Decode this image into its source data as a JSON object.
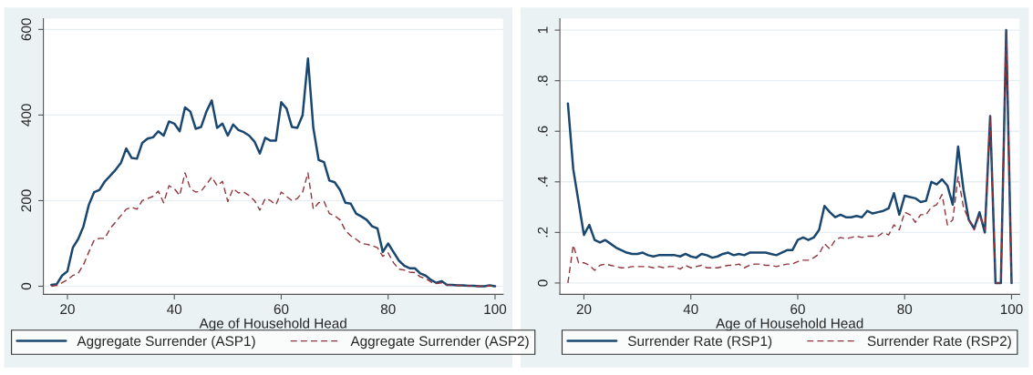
{
  "chart_data": [
    {
      "type": "line",
      "xlabel": "Age of Household Head",
      "xlim": [
        15.5,
        101.5
      ],
      "xticks": [
        20,
        40,
        60,
        80,
        100
      ],
      "ylim": [
        -19,
        625
      ],
      "yticks": [
        0,
        200,
        400,
        600
      ],
      "grid": "y",
      "legend": "bottom",
      "x": [
        17,
        18,
        19,
        20,
        21,
        22,
        23,
        24,
        25,
        26,
        27,
        28,
        29,
        30,
        31,
        32,
        33,
        34,
        35,
        36,
        37,
        38,
        39,
        40,
        41,
        42,
        43,
        44,
        45,
        46,
        47,
        48,
        49,
        50,
        51,
        52,
        53,
        54,
        55,
        56,
        57,
        58,
        59,
        60,
        61,
        62,
        63,
        64,
        65,
        66,
        67,
        68,
        69,
        70,
        71,
        72,
        73,
        74,
        75,
        76,
        77,
        78,
        79,
        80,
        81,
        82,
        83,
        84,
        85,
        86,
        87,
        88,
        89,
        90,
        91,
        92,
        93,
        94,
        95,
        96,
        97,
        98,
        99,
        100
      ],
      "series": [
        {
          "name": "Aggregate Surrender (ASP1)",
          "color": "#1a476f",
          "line_style": "solid",
          "values": [
            3,
            5,
            25,
            35,
            90,
            110,
            140,
            190,
            220,
            225,
            245,
            258,
            272,
            288,
            322,
            300,
            298,
            335,
            345,
            348,
            362,
            352,
            385,
            380,
            362,
            418,
            408,
            368,
            372,
            408,
            434,
            370,
            380,
            352,
            378,
            365,
            360,
            352,
            338,
            310,
            347,
            340,
            340,
            430,
            415,
            372,
            370,
            400,
            532,
            370,
            295,
            290,
            247,
            243,
            225,
            195,
            193,
            170,
            163,
            155,
            140,
            135,
            80,
            100,
            80,
            60,
            48,
            42,
            42,
            30,
            25,
            15,
            8,
            12,
            3,
            3,
            2,
            2,
            1,
            1,
            0,
            0,
            2,
            0
          ]
        },
        {
          "name": "Aggregate Surrender (ASP2)",
          "color": "#90353b",
          "line_style": "dashed",
          "values": [
            0,
            2,
            8,
            15,
            25,
            30,
            50,
            80,
            108,
            112,
            112,
            135,
            150,
            165,
            180,
            185,
            180,
            200,
            205,
            210,
            222,
            195,
            235,
            228,
            212,
            265,
            228,
            220,
            222,
            238,
            255,
            235,
            245,
            198,
            228,
            218,
            220,
            212,
            200,
            178,
            205,
            200,
            190,
            220,
            210,
            200,
            205,
            220,
            265,
            180,
            195,
            198,
            170,
            165,
            155,
            130,
            118,
            110,
            100,
            98,
            95,
            90,
            70,
            78,
            55,
            40,
            38,
            33,
            32,
            22,
            18,
            10,
            6,
            8,
            3,
            2,
            2,
            1,
            1,
            0,
            0,
            0,
            1,
            0
          ]
        }
      ]
    },
    {
      "type": "line",
      "xlabel": "Age of Household Head",
      "xlim": [
        15.5,
        101.5
      ],
      "xticks": [
        20,
        40,
        60,
        80,
        100
      ],
      "ylim": [
        -0.045,
        1.045
      ],
      "yticks": [
        0,
        {
          "value": 0.2,
          "label": ".2"
        },
        {
          "value": 0.4,
          "label": ".4"
        },
        {
          "value": 0.6,
          "label": ".6"
        },
        {
          "value": 0.8,
          "label": ".8"
        },
        1
      ],
      "grid": "y",
      "legend": "bottom",
      "x": [
        17,
        18,
        19,
        20,
        21,
        22,
        23,
        24,
        25,
        26,
        27,
        28,
        29,
        30,
        31,
        32,
        33,
        34,
        35,
        36,
        37,
        38,
        39,
        40,
        41,
        42,
        43,
        44,
        45,
        46,
        47,
        48,
        49,
        50,
        51,
        52,
        53,
        54,
        55,
        56,
        57,
        58,
        59,
        60,
        61,
        62,
        63,
        64,
        65,
        66,
        67,
        68,
        69,
        70,
        71,
        72,
        73,
        74,
        75,
        76,
        77,
        78,
        79,
        80,
        81,
        82,
        83,
        84,
        85,
        86,
        87,
        88,
        89,
        90,
        91,
        92,
        93,
        94,
        95,
        96,
        97,
        98,
        99,
        100
      ],
      "series": [
        {
          "name": "Surrender Rate (RSP1)",
          "color": "#1a476f",
          "line_style": "solid",
          "values": [
            0.71,
            0.45,
            0.32,
            0.19,
            0.23,
            0.17,
            0.16,
            0.17,
            0.155,
            0.14,
            0.13,
            0.12,
            0.115,
            0.115,
            0.12,
            0.11,
            0.105,
            0.11,
            0.11,
            0.11,
            0.11,
            0.105,
            0.115,
            0.105,
            0.1,
            0.115,
            0.11,
            0.1,
            0.105,
            0.115,
            0.12,
            0.11,
            0.115,
            0.11,
            0.12,
            0.12,
            0.12,
            0.12,
            0.115,
            0.11,
            0.12,
            0.13,
            0.13,
            0.17,
            0.18,
            0.17,
            0.18,
            0.21,
            0.305,
            0.28,
            0.26,
            0.27,
            0.26,
            0.26,
            0.265,
            0.26,
            0.285,
            0.275,
            0.28,
            0.285,
            0.295,
            0.355,
            0.27,
            0.345,
            0.34,
            0.335,
            0.32,
            0.325,
            0.4,
            0.39,
            0.41,
            0.385,
            0.31,
            0.54,
            0.37,
            0.25,
            0.215,
            0.28,
            0.2,
            0.66,
            0,
            0,
            1.0,
            0
          ]
        },
        {
          "name": "Surrender Rate (RSP2)",
          "color": "#90353b",
          "line_style": "dashed",
          "values": [
            0,
            0.15,
            0.08,
            0.08,
            0.07,
            0.05,
            0.07,
            0.075,
            0.07,
            0.065,
            0.06,
            0.06,
            0.065,
            0.065,
            0.065,
            0.065,
            0.06,
            0.065,
            0.06,
            0.065,
            0.065,
            0.055,
            0.07,
            0.06,
            0.065,
            0.07,
            0.06,
            0.06,
            0.06,
            0.065,
            0.07,
            0.07,
            0.075,
            0.06,
            0.07,
            0.075,
            0.075,
            0.07,
            0.07,
            0.065,
            0.07,
            0.075,
            0.075,
            0.085,
            0.09,
            0.09,
            0.1,
            0.115,
            0.155,
            0.135,
            0.17,
            0.18,
            0.175,
            0.18,
            0.185,
            0.18,
            0.185,
            0.185,
            0.185,
            0.2,
            0.19,
            0.23,
            0.21,
            0.28,
            0.27,
            0.24,
            0.27,
            0.27,
            0.3,
            0.31,
            0.35,
            0.23,
            0.25,
            0.42,
            0.3,
            0.25,
            0.21,
            0.27,
            0.21,
            0.66,
            0,
            0,
            1.0,
            0
          ]
        }
      ]
    }
  ]
}
